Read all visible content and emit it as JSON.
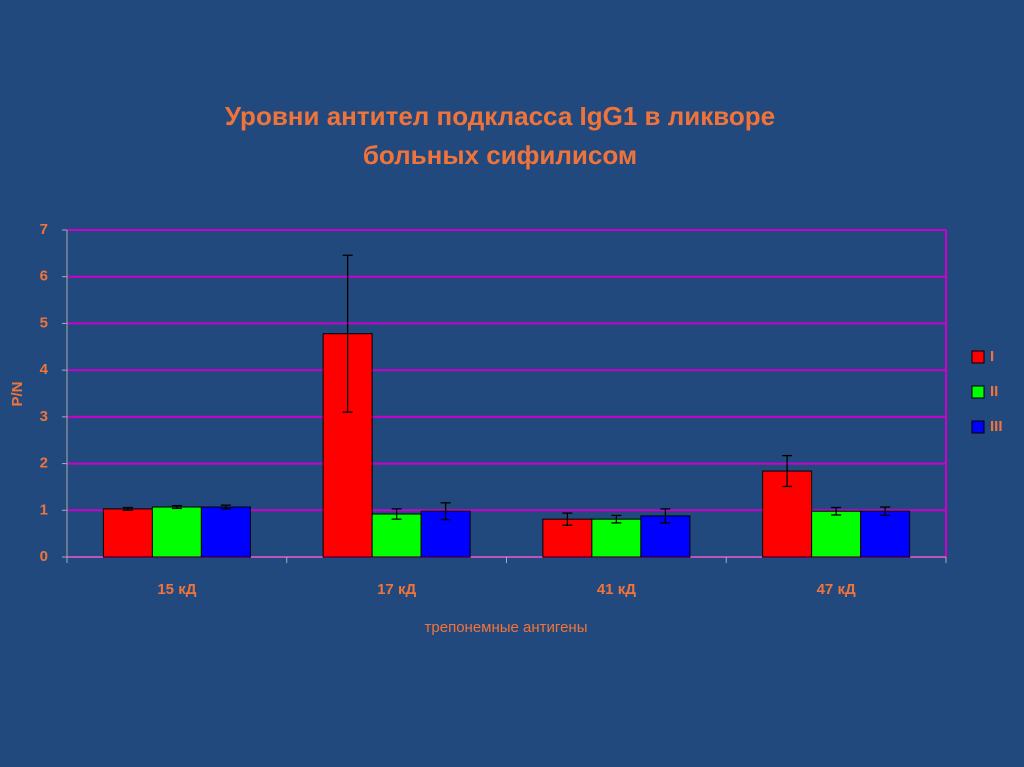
{
  "chart_data": {
    "type": "bar",
    "title": [
      "Уровни антител подкласса IgG1 в ликворе",
      "больных сифилисом"
    ],
    "x_label": "трепонемные антигены",
    "y_label": "P/N",
    "categories": [
      "15 кД",
      "17 кД",
      "41 кД",
      "47 кД"
    ],
    "series": [
      {
        "name": "I",
        "color": "#ff0000",
        "values": [
          1.03,
          4.78,
          0.81,
          1.84
        ],
        "errors": [
          0.03,
          1.68,
          0.13,
          0.33
        ]
      },
      {
        "name": "II",
        "color": "#00ff00",
        "values": [
          1.07,
          0.92,
          0.81,
          0.98
        ],
        "errors": [
          0.03,
          0.11,
          0.08,
          0.08
        ]
      },
      {
        "name": "III",
        "color": "#0000ff",
        "values": [
          1.07,
          0.98,
          0.88,
          0.98
        ],
        "errors": [
          0.04,
          0.18,
          0.15,
          0.09
        ]
      }
    ],
    "ylim": [
      0,
      7
    ],
    "yticks": [
      0,
      1,
      2,
      3,
      4,
      5,
      6,
      7
    ],
    "grid": true,
    "legend": "right"
  }
}
